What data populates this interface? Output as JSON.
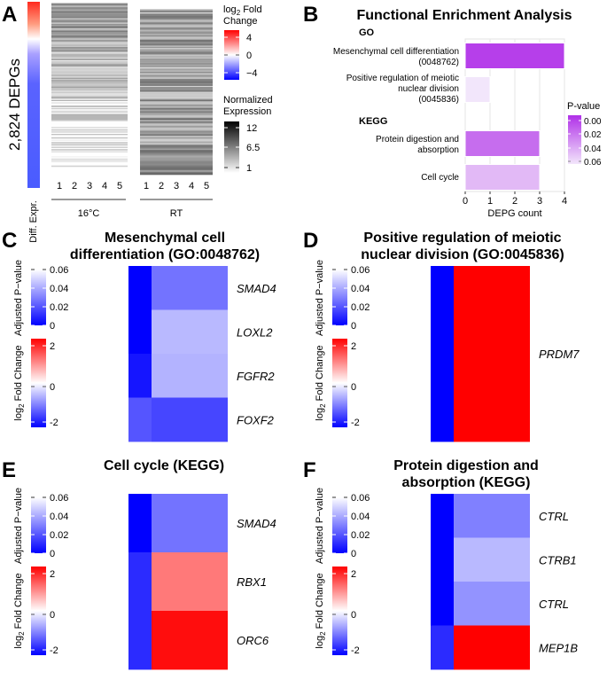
{
  "panel_a": {
    "letter": "A",
    "ylabel": "2,824 DEPGs",
    "side_label": "Diff. Expr.",
    "samples": [
      "1",
      "2",
      "3",
      "4",
      "5"
    ],
    "group_16c": "16°C",
    "group_rt": "RT",
    "legend_fc_title_base": "log",
    "legend_fc_title_sub": "2",
    "legend_fc_title_rest": " Fold",
    "legend_fc_title_line2": "Change",
    "legend_fc_ticks": [
      "4",
      "0",
      "−4"
    ],
    "legend_expr_title_line1": "Normalized",
    "legend_expr_title_line2": "Expression",
    "legend_expr_ticks": [
      "12",
      "6.5",
      "1"
    ]
  },
  "panel_b": {
    "letter": "B",
    "title": "Functional Enrichment Analysis",
    "section_go": "GO",
    "section_kegg": "KEGG",
    "labels": [
      [
        "Mesenchymal cell differentiation",
        "(0048762)"
      ],
      [
        "Positive regulation of meiotic",
        "nuclear division",
        "(0045836)"
      ],
      [
        "Protein digestion and",
        "absorption"
      ],
      [
        "Cell cycle"
      ]
    ],
    "legend_title": "P-value",
    "legend_ticks": [
      "0.00",
      "0.02",
      "0.04",
      "0.06"
    ],
    "colors": {
      "low_p": "#b030e8",
      "high_p": "#f2e6fb"
    }
  },
  "panel_c": {
    "letter": "C",
    "title_line1": "Mesenchymal cell",
    "title_line2": "differentiation (GO:0048762)",
    "genes": [
      "SMAD4",
      "LOXL2",
      "FGFR2",
      "FOXF2"
    ]
  },
  "panel_d": {
    "letter": "D",
    "title_line1": "Positive regulation of meiotic",
    "title_line2": "nuclear division (GO:0045836)",
    "genes": [
      "PRDM7"
    ]
  },
  "panel_e": {
    "letter": "E",
    "title_line1": "Cell cycle (KEGG)",
    "genes": [
      "SMAD4",
      "RBX1",
      "ORC6"
    ]
  },
  "panel_f": {
    "letter": "F",
    "title_line1": "Protein digestion and",
    "title_line2": "absorption (KEGG)",
    "genes": [
      "CTRL",
      "CTRB1",
      "CTRL",
      "MEP1B"
    ]
  },
  "heatmap_legends": {
    "pvalue_title": "Adjusted P−value",
    "pvalue_ticks": [
      "0.06",
      "0.04",
      "0.02",
      "0"
    ],
    "fc_title_base": "log",
    "fc_title_sub": "2",
    "fc_title_rest": " Fold Change",
    "fc_ticks": [
      "2",
      "0",
      "-2"
    ]
  },
  "colors": {
    "fc_pos": "#ff0000",
    "fc_neg": "#0000ff",
    "neutral": "#ffffff",
    "pval_low": "#0000ff"
  },
  "chart_data": [
    {
      "id": "B",
      "type": "bar",
      "orientation": "horizontal",
      "title": "Functional Enrichment Analysis",
      "categories": [
        "Mesenchymal cell differentiation (0048762)",
        "Positive regulation of meiotic nuclear division (0045836)",
        "Protein digestion and absorption",
        "Cell cycle"
      ],
      "groups": [
        "GO",
        "GO",
        "KEGG",
        "KEGG"
      ],
      "values": [
        4,
        1,
        3,
        3
      ],
      "p_values": [
        0.005,
        0.06,
        0.02,
        0.045
      ],
      "xlabel": "DEPG count",
      "xlim": [
        0,
        4
      ],
      "xticks": [
        0,
        1,
        2,
        3,
        4
      ],
      "grid": true
    },
    {
      "id": "C",
      "type": "heatmap",
      "title": "Mesenchymal cell differentiation (GO:0048762)",
      "rows": [
        "SMAD4",
        "LOXL2",
        "FGFR2",
        "FOXF2"
      ],
      "adjusted_p_value": [
        0.0,
        0.0,
        0.005,
        0.02
      ],
      "log2_fold_change": [
        -1.1,
        -0.55,
        -0.6,
        -1.45
      ]
    },
    {
      "id": "D",
      "type": "heatmap",
      "title": "Positive regulation of meiotic nuclear division (GO:0045836)",
      "rows": [
        "PRDM7"
      ],
      "adjusted_p_value": [
        0.0
      ],
      "log2_fold_change": [
        2.0
      ]
    },
    {
      "id": "E",
      "type": "heatmap",
      "title": "Cell cycle (KEGG)",
      "rows": [
        "SMAD4",
        "RBX1",
        "ORC6"
      ],
      "adjusted_p_value": [
        0.0,
        0.01,
        0.01
      ],
      "log2_fold_change": [
        -1.1,
        1.05,
        1.9
      ]
    },
    {
      "id": "F",
      "type": "heatmap",
      "title": "Protein digestion and absorption (KEGG)",
      "rows": [
        "CTRL",
        "CTRB1",
        "CTRL",
        "MEP1B"
      ],
      "adjusted_p_value": [
        0.0,
        0.0,
        0.0,
        0.01
      ],
      "log2_fold_change": [
        -1.0,
        -0.55,
        -0.85,
        2.0
      ]
    }
  ]
}
